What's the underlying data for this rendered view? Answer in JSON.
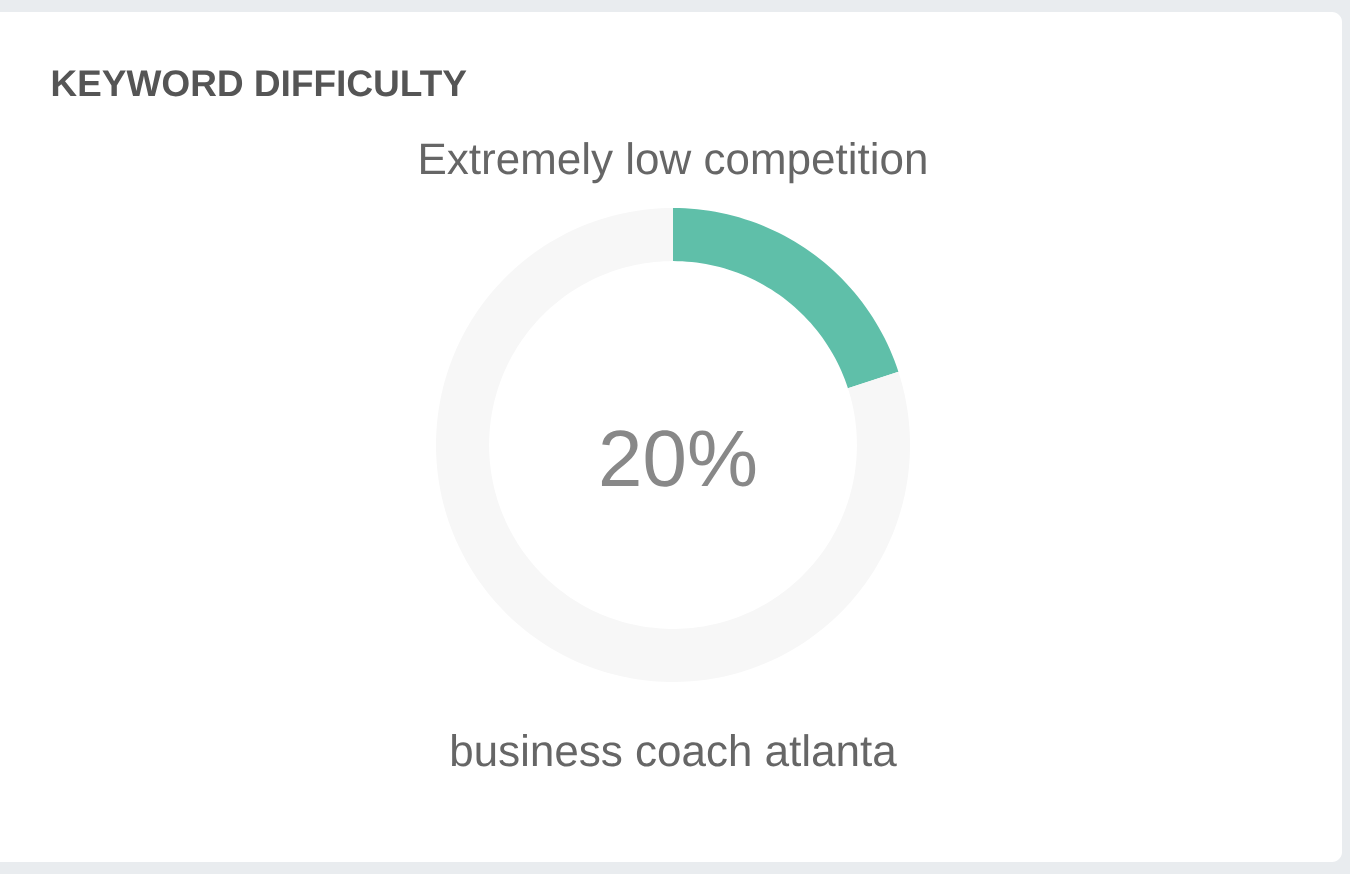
{
  "chart_data": {
    "type": "donut",
    "title": "KEYWORD DIFFICULTY",
    "subtitle": "Extremely low competition",
    "categories": [
      null,
      null
    ],
    "values": [
      20,
      80
    ],
    "colors": [
      "#5fbfa9",
      "#f7f7f7"
    ],
    "annotations": [
      "20%",
      "business coach atlanta"
    ]
  }
}
